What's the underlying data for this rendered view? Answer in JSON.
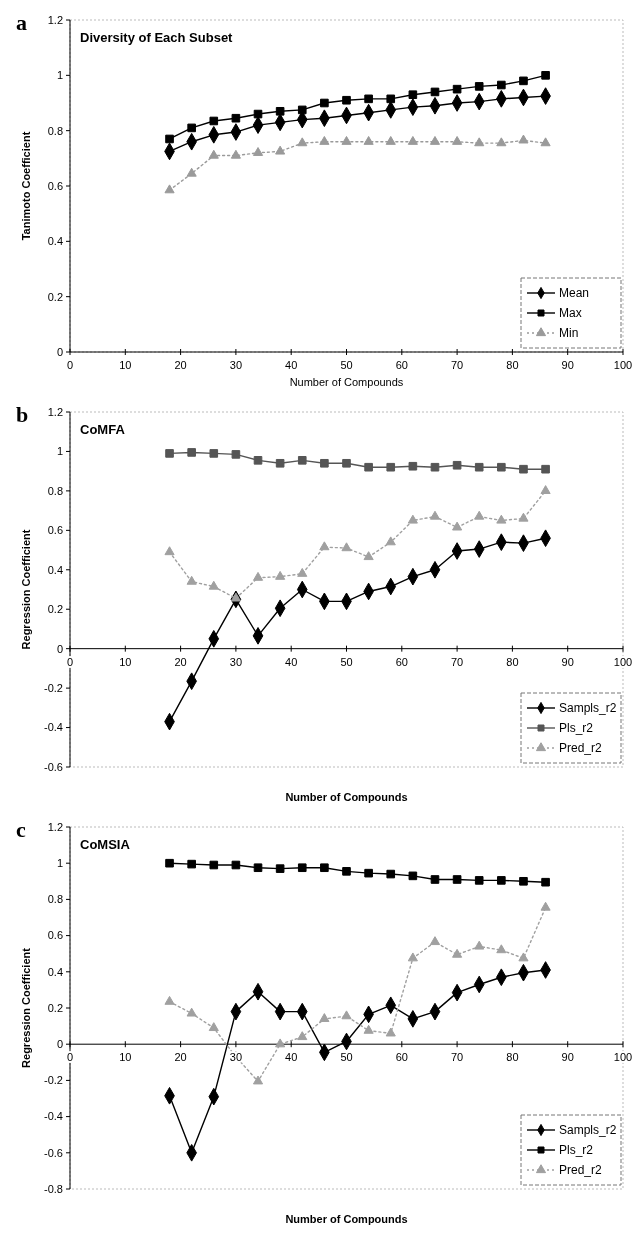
{
  "chart_data": [
    {
      "type": "line",
      "title": "Diversity of Each Subset",
      "annotations": [
        "a"
      ],
      "xlabel": "Number of Compounds",
      "ylabel": "Tanimoto Coefficient",
      "x": [
        18,
        22,
        26,
        30,
        34,
        38,
        42,
        46,
        50,
        54,
        58,
        62,
        66,
        70,
        74,
        78,
        82,
        86
      ],
      "xlim": [
        0,
        100
      ],
      "xticks": [
        0,
        10,
        20,
        30,
        40,
        50,
        60,
        70,
        80,
        90,
        100
      ],
      "ylim": [
        0,
        1.2
      ],
      "yticks": [
        0,
        0.2,
        0.4,
        0.6,
        0.8,
        1,
        1.2
      ],
      "legend": "bottom right",
      "grid": false,
      "series": [
        {
          "name": "Mean",
          "color": "#000000",
          "marker": "diamond",
          "line_style": "solid",
          "values": [
            0.725,
            0.76,
            0.785,
            0.795,
            0.82,
            0.83,
            0.84,
            0.845,
            0.855,
            0.865,
            0.875,
            0.885,
            0.89,
            0.9,
            0.905,
            0.915,
            0.92,
            0.925
          ]
        },
        {
          "name": "Max",
          "color": "#000000",
          "marker": "square",
          "line_style": "solid",
          "values": [
            0.77,
            0.81,
            0.835,
            0.845,
            0.86,
            0.87,
            0.875,
            0.9,
            0.91,
            0.915,
            0.915,
            0.93,
            0.94,
            0.95,
            0.96,
            0.965,
            0.98,
            1.0
          ]
        },
        {
          "name": "Min",
          "color": "#9a9a9a",
          "marker": "triangle",
          "line_style": "dotted",
          "values": [
            0.585,
            0.645,
            0.71,
            0.71,
            0.72,
            0.725,
            0.755,
            0.76,
            0.76,
            0.76,
            0.76,
            0.76,
            0.76,
            0.76,
            0.755,
            0.755,
            0.765,
            0.755
          ]
        }
      ]
    },
    {
      "type": "line",
      "title": "CoMFA",
      "annotations": [
        "b"
      ],
      "xlabel": "Number of Compounds",
      "ylabel": "Regression Coefficient",
      "x": [
        18,
        22,
        26,
        30,
        34,
        38,
        42,
        46,
        50,
        54,
        58,
        62,
        66,
        70,
        74,
        78,
        82,
        86
      ],
      "xlim": [
        0,
        100
      ],
      "xticks": [
        0,
        10,
        20,
        30,
        40,
        50,
        60,
        70,
        80,
        90,
        100
      ],
      "ylim": [
        -0.6,
        1.2
      ],
      "yticks": [
        -0.6,
        -0.4,
        -0.2,
        0,
        0.2,
        0.4,
        0.6,
        0.8,
        1,
        1.2
      ],
      "legend": "bottom right",
      "grid": false,
      "series": [
        {
          "name": "Sampls_r2",
          "color": "#000000",
          "marker": "diamond",
          "line_style": "solid",
          "values": [
            -0.37,
            -0.165,
            0.05,
            0.25,
            0.065,
            0.205,
            0.3,
            0.24,
            0.24,
            0.29,
            0.315,
            0.365,
            0.4,
            0.495,
            0.505,
            0.54,
            0.535,
            0.56
          ]
        },
        {
          "name": "Pls_r2",
          "color": "#555555",
          "marker": "square",
          "line_style": "solid",
          "values": [
            0.99,
            0.995,
            0.99,
            0.985,
            0.955,
            0.94,
            0.955,
            0.94,
            0.94,
            0.92,
            0.92,
            0.925,
            0.92,
            0.93,
            0.92,
            0.92,
            0.91,
            0.91
          ]
        },
        {
          "name": "Pred_r2",
          "color": "#a0a0a0",
          "marker": "triangle",
          "line_style": "dotted",
          "values": [
            0.49,
            0.34,
            0.315,
            0.255,
            0.36,
            0.365,
            0.38,
            0.515,
            0.51,
            0.465,
            0.54,
            0.65,
            0.67,
            0.615,
            0.67,
            0.65,
            0.66,
            0.8
          ]
        }
      ]
    },
    {
      "type": "line",
      "title": "CoMSIA",
      "annotations": [
        "c"
      ],
      "xlabel": "Number of Compounds",
      "ylabel": "Regression Coefficient",
      "x": [
        18,
        22,
        26,
        30,
        34,
        38,
        42,
        46,
        50,
        54,
        58,
        62,
        66,
        70,
        74,
        78,
        82,
        86
      ],
      "xlim": [
        0,
        100
      ],
      "xticks": [
        0,
        10,
        20,
        30,
        40,
        50,
        60,
        70,
        80,
        90,
        100
      ],
      "ylim": [
        -0.8,
        1.2
      ],
      "yticks": [
        -0.8,
        -0.6,
        -0.4,
        -0.2,
        0,
        0.2,
        0.4,
        0.6,
        0.8,
        1,
        1.2
      ],
      "legend": "bottom right",
      "grid": false,
      "series": [
        {
          "name": "Sampls_r2",
          "color": "#000000",
          "marker": "diamond",
          "line_style": "solid",
          "values": [
            -0.285,
            -0.6,
            -0.29,
            0.18,
            0.29,
            0.18,
            0.18,
            -0.045,
            0.015,
            0.165,
            0.215,
            0.14,
            0.18,
            0.285,
            0.33,
            0.37,
            0.395,
            0.41
          ]
        },
        {
          "name": "Pls_r2",
          "color": "#000000",
          "marker": "square",
          "line_style": "solid",
          "values": [
            1.0,
            0.995,
            0.99,
            0.99,
            0.975,
            0.97,
            0.975,
            0.975,
            0.955,
            0.945,
            0.94,
            0.93,
            0.91,
            0.91,
            0.905,
            0.905,
            0.9,
            0.895
          ]
        },
        {
          "name": "Pred_r2",
          "color": "#a0a0a0",
          "marker": "triangle",
          "line_style": "dotted",
          "values": [
            0.235,
            0.17,
            0.09,
            -0.07,
            -0.205,
            0.0,
            0.04,
            0.14,
            0.155,
            0.075,
            0.06,
            0.475,
            0.565,
            0.495,
            0.54,
            0.52,
            0.475,
            0.755
          ]
        }
      ]
    }
  ]
}
